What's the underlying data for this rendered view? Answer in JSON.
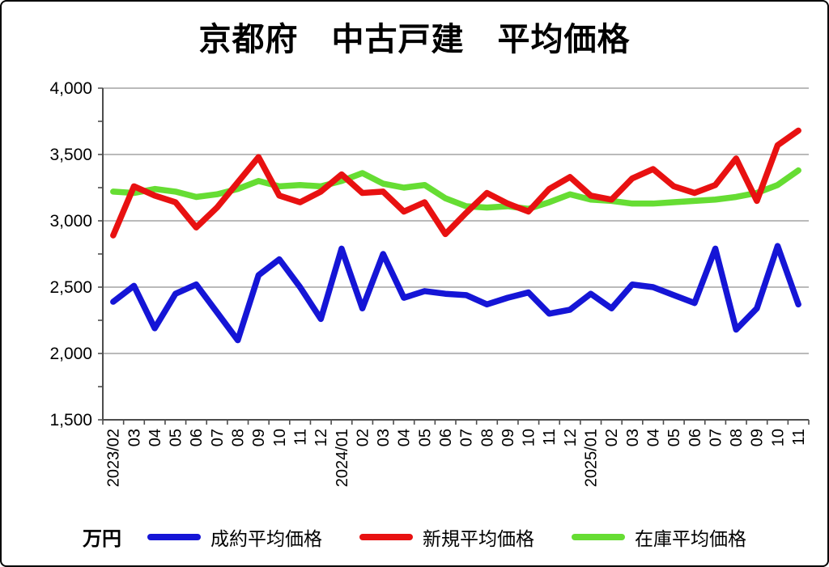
{
  "title": "京都府　中古戸建　平均価格",
  "unit_label": "万円",
  "colors": {
    "grid": "#a3a3a3",
    "axis": "#4d4d4d",
    "blue": "#1515d6",
    "red": "#e81111",
    "green": "#66dd33"
  },
  "chart_data": {
    "type": "line",
    "title": "京都府 中古戸建 平均価格",
    "unit": "万円",
    "ylim": [
      1500,
      4000
    ],
    "ytick_step": 500,
    "y_minor_tick_step": 250,
    "ytick_labels": [
      "1,500",
      "2,000",
      "2,500",
      "3,000",
      "3,500",
      "4,000"
    ],
    "grid": true,
    "legend_position": "bottom",
    "categories": [
      "2023/02",
      "03",
      "04",
      "05",
      "06",
      "07",
      "08",
      "09",
      "10",
      "11",
      "12",
      "2024/01",
      "02",
      "03",
      "04",
      "05",
      "06",
      "07",
      "08",
      "09",
      "10",
      "11",
      "12",
      "2025/01",
      "02",
      "03",
      "04",
      "05",
      "06",
      "07",
      "08",
      "09",
      "10",
      "11"
    ],
    "series": [
      {
        "name": "成約平均価格",
        "color": "#1515d6",
        "values": [
          2390,
          2510,
          2190,
          2450,
          2520,
          2310,
          2100,
          2590,
          2710,
          2500,
          2260,
          2790,
          2340,
          2750,
          2420,
          2470,
          2450,
          2440,
          2370,
          2420,
          2460,
          2300,
          2330,
          2450,
          2340,
          2520,
          2500,
          2440,
          2380,
          2790,
          2180,
          2340,
          2810,
          2370
        ]
      },
      {
        "name": "新規平均価格",
        "color": "#e81111",
        "values": [
          2890,
          3260,
          3190,
          3140,
          2950,
          3100,
          3290,
          3480,
          3190,
          3140,
          3220,
          3350,
          3210,
          3220,
          3070,
          3140,
          2900,
          3060,
          3210,
          3130,
          3070,
          3240,
          3330,
          3190,
          3160,
          3320,
          3390,
          3260,
          3210,
          3270,
          3470,
          3150,
          3570,
          3680
        ]
      },
      {
        "name": "在庫平均価格",
        "color": "#66dd33",
        "values": [
          3220,
          3210,
          3240,
          3220,
          3180,
          3200,
          3240,
          3300,
          3260,
          3270,
          3260,
          3300,
          3360,
          3280,
          3250,
          3270,
          3170,
          3110,
          3100,
          3110,
          3090,
          3140,
          3200,
          3160,
          3150,
          3130,
          3130,
          3140,
          3150,
          3160,
          3180,
          3210,
          3270,
          3380
        ]
      }
    ]
  }
}
